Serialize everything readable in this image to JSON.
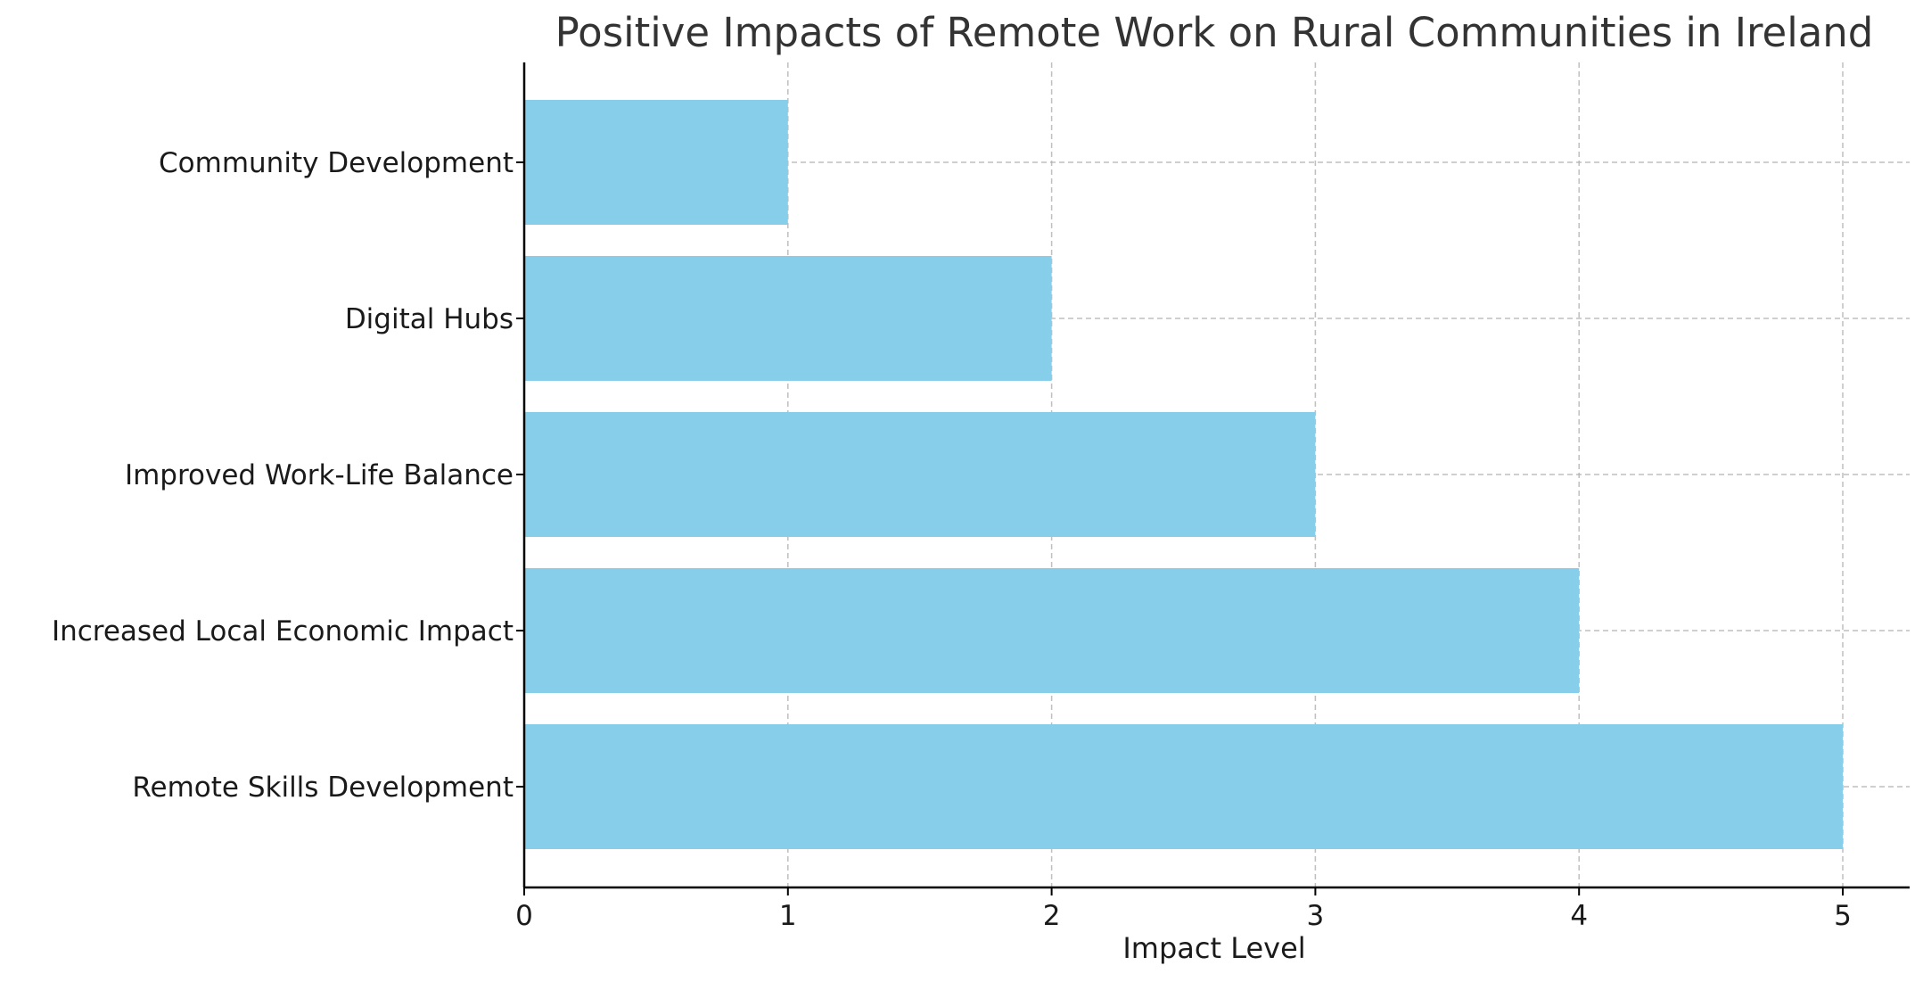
{
  "chart_data": {
    "type": "bar",
    "orientation": "horizontal",
    "title": "Positive Impacts of Remote Work on Rural Communities in Ireland",
    "xlabel": "Impact Level",
    "ylabel": "",
    "categories": [
      "Remote Skills Development",
      "Increased Local Economic Impact",
      "Improved Work-Life Balance",
      "Digital Hubs",
      "Community Development"
    ],
    "values": [
      5,
      4,
      3,
      2,
      1
    ],
    "xlim": [
      0,
      5.25
    ],
    "xticks": [
      0,
      1,
      2,
      3,
      4,
      5
    ],
    "grid": true,
    "bar_color": "#87CEEB"
  }
}
